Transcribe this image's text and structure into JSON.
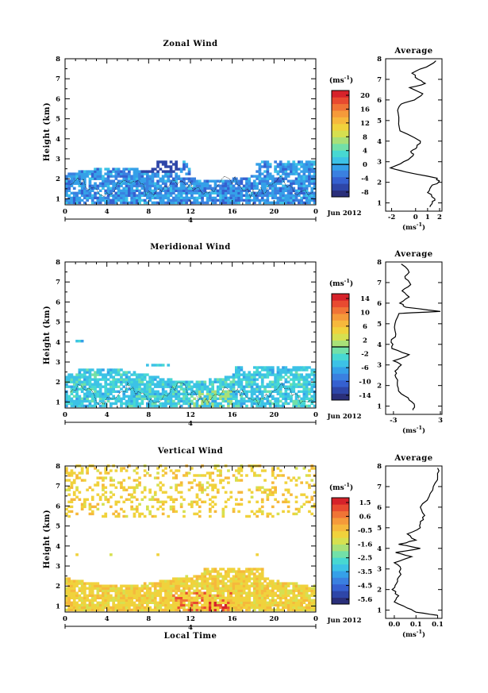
{
  "figure": {
    "ylabel": "Height (km)",
    "xlabel": "Local Time",
    "date_label": "Jun 2012",
    "day_marker": "4",
    "x_ticks": [
      "0",
      "4",
      "8",
      "12",
      "16",
      "20",
      "0"
    ],
    "y_ticks": [
      "1",
      "2",
      "3",
      "4",
      "5",
      "6",
      "7",
      "8"
    ],
    "colorbar_unit": "(ms",
    "unit_exp": "-1",
    "unit_close": ")",
    "avg_unit": "(ms",
    "avg_unit_close": ")"
  },
  "panels": [
    {
      "title": "Zonal Wind",
      "avg_title": "Average",
      "cbar_ticks": [
        "20",
        "16",
        "12",
        "8",
        "4",
        "0",
        "-4",
        "-8"
      ],
      "cbar_zero_index": 5,
      "avg_x_ticks": [
        "-2",
        "0",
        "1",
        "2"
      ],
      "avg_x_values": [
        -2,
        0,
        1,
        2
      ],
      "avg_xlim": [
        -2.5,
        2.2
      ]
    },
    {
      "title": "Meridional Wind",
      "avg_title": "Average",
      "cbar_ticks": [
        "14",
        "10",
        "6",
        "2",
        "-2",
        "-6",
        "-10",
        "-14"
      ],
      "cbar_zero_index": 3.5,
      "avg_x_ticks": [
        "-3",
        "3"
      ],
      "avg_x_values": [
        -3,
        3
      ],
      "avg_xlim": [
        -4,
        3.2
      ]
    },
    {
      "title": "Vertical Wind",
      "avg_title": "Average",
      "cbar_ticks": [
        "1.5",
        "0.6",
        "-0.5",
        "-1.6",
        "-2.5",
        "-3.5",
        "-4.5",
        "-5.6"
      ],
      "cbar_zero_index": -1,
      "avg_x_ticks": [
        "0.0",
        "0.1",
        "0.1"
      ],
      "avg_x_values": [
        0.0,
        0.05,
        0.1
      ],
      "avg_xlim": [
        -0.02,
        0.11
      ]
    }
  ],
  "chart_data": [
    {
      "type": "heatmap",
      "title": "Zonal Wind",
      "ylabel": "Height (km)",
      "xlim": [
        0,
        24
      ],
      "ylim": [
        0.7,
        8
      ],
      "colorbar_range": [
        -8,
        22
      ],
      "avg_profile": {
        "height": [
          0.8,
          1.0,
          1.2,
          1.5,
          1.8,
          2.0,
          2.2,
          2.5,
          2.7,
          3.0,
          3.3,
          3.5,
          3.7,
          4.0,
          4.5,
          5.0,
          5.5,
          5.8,
          6.0,
          6.3,
          6.6,
          6.8,
          7.0,
          7.3,
          7.6,
          7.9
        ],
        "value": [
          1.2,
          1.4,
          1.6,
          1.0,
          1.3,
          1.9,
          1.8,
          -0.8,
          -2.1,
          -1.0,
          -0.2,
          -0.4,
          0.1,
          0.4,
          -1.3,
          -1.4,
          -1.5,
          -1.2,
          -0.1,
          0.6,
          -0.5,
          0.8,
          0.2,
          -0.3,
          0.9,
          1.7
        ]
      }
    },
    {
      "type": "heatmap",
      "title": "Meridional Wind",
      "ylabel": "Height (km)",
      "xlim": [
        0,
        24
      ],
      "ylim": [
        0.7,
        8
      ],
      "colorbar_range": [
        -14,
        16
      ],
      "avg_profile": {
        "height": [
          0.8,
          1.0,
          1.3,
          1.6,
          2.0,
          2.4,
          2.7,
          3.0,
          3.2,
          3.5,
          3.8,
          4.1,
          4.5,
          5.0,
          5.5,
          5.6,
          5.8,
          6.0,
          6.3,
          6.6,
          6.9,
          7.2,
          7.5,
          7.9
        ],
        "value": [
          -0.5,
          -0.3,
          -1.0,
          -2.0,
          -2.5,
          -2.7,
          -2.8,
          -2.0,
          -3.0,
          -1.0,
          -3.2,
          -3.3,
          -2.7,
          -2.8,
          -2.3,
          3.0,
          -1.4,
          -2.2,
          -1.0,
          -1.9,
          -0.8,
          -1.5,
          -1.0,
          -2.0
        ]
      }
    },
    {
      "type": "heatmap",
      "title": "Vertical Wind",
      "ylabel": "Height (km)",
      "xlabel": "Local Time",
      "xlim": [
        0,
        24
      ],
      "ylim": [
        0.7,
        8
      ],
      "colorbar_range": [
        -6,
        2
      ],
      "avg_profile": {
        "height": [
          0.75,
          0.9,
          1.1,
          1.4,
          1.7,
          2.0,
          2.3,
          2.6,
          3.0,
          3.3,
          3.6,
          3.8,
          4.0,
          4.2,
          4.4,
          4.7,
          5.0,
          5.3,
          5.6,
          6.0,
          6.5,
          7.0,
          7.5,
          7.9
        ],
        "value": [
          0.1,
          0.05,
          0.03,
          0.0,
          0.01,
          -0.005,
          0.005,
          0.01,
          0.015,
          0.0,
          0.04,
          0.003,
          0.06,
          0.01,
          0.05,
          0.03,
          0.06,
          0.06,
          0.07,
          0.06,
          0.08,
          0.09,
          0.1,
          0.1
        ]
      }
    }
  ]
}
